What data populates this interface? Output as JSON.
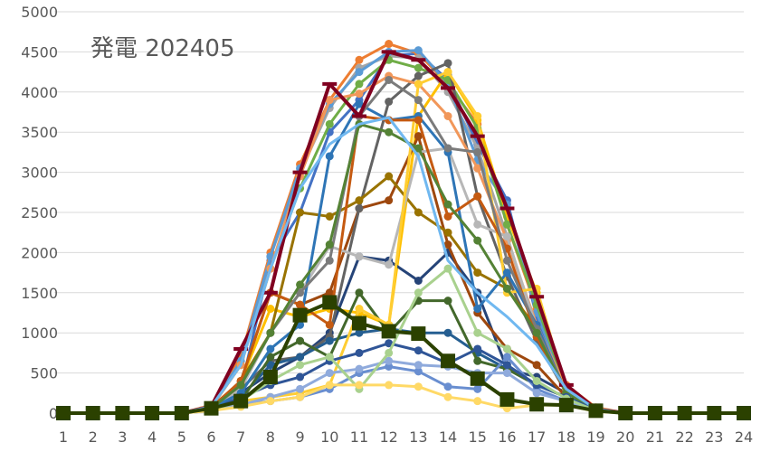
{
  "chart_data": {
    "type": "line",
    "title": "発電 202405",
    "xlabel": "",
    "ylabel": "",
    "x": [
      1,
      2,
      3,
      4,
      5,
      6,
      7,
      8,
      9,
      10,
      11,
      12,
      13,
      14,
      15,
      16,
      17,
      18,
      19,
      20,
      21,
      22,
      23,
      24
    ],
    "ylim": [
      0,
      5000
    ],
    "yticks": [
      0,
      500,
      1000,
      1500,
      2000,
      2500,
      3000,
      3500,
      4000,
      4500,
      5000
    ],
    "grid": "horizontal",
    "legend": "none",
    "series": [
      {
        "color": "#4472C4",
        "marker": "circle",
        "values": [
          0,
          0,
          0,
          0,
          0,
          60,
          300,
          1900,
          2500,
          3500,
          3900,
          4450,
          4480,
          4150,
          3350,
          2650,
          1200,
          300,
          60,
          0,
          0,
          0,
          0,
          0
        ]
      },
      {
        "color": "#ED7D31",
        "marker": "circle",
        "values": [
          0,
          0,
          0,
          0,
          0,
          100,
          700,
          2000,
          3100,
          3900,
          4400,
          4600,
          4480,
          4100,
          3600,
          2350,
          1300,
          350,
          70,
          0,
          0,
          0,
          0,
          0
        ]
      },
      {
        "color": "#A5A5A5",
        "marker": "circle",
        "values": [
          0,
          0,
          0,
          0,
          0,
          80,
          600,
          1950,
          3000,
          3800,
          4300,
          4450,
          4420,
          4000,
          3300,
          2200,
          1000,
          250,
          50,
          0,
          0,
          0,
          0,
          0
        ]
      },
      {
        "color": "#FFC000",
        "marker": "circle",
        "values": [
          0,
          0,
          0,
          0,
          0,
          50,
          400,
          1300,
          1200,
          1300,
          1250,
          1100,
          3700,
          4250,
          3650,
          2450,
          1500,
          300,
          60,
          0,
          0,
          0,
          0,
          0
        ]
      },
      {
        "color": "#5B9BD5",
        "marker": "circle",
        "values": [
          0,
          0,
          0,
          0,
          0,
          90,
          650,
          1950,
          3050,
          3850,
          4250,
          4500,
          4520,
          4100,
          3150,
          2600,
          1250,
          280,
          50,
          0,
          0,
          0,
          0,
          0
        ]
      },
      {
        "color": "#70AD47",
        "marker": "circle",
        "values": [
          0,
          0,
          0,
          0,
          0,
          70,
          600,
          1800,
          2800,
          3600,
          4100,
          4400,
          4300,
          4150,
          3550,
          2350,
          1350,
          300,
          60,
          0,
          0,
          0,
          0,
          0
        ]
      },
      {
        "color": "#264478",
        "marker": "circle",
        "values": [
          0,
          0,
          0,
          0,
          0,
          60,
          250,
          500,
          700,
          1000,
          1950,
          1900,
          1650,
          2000,
          1500,
          550,
          450,
          250,
          50,
          0,
          0,
          0,
          0,
          0
        ]
      },
      {
        "color": "#9E480E",
        "marker": "circle",
        "values": [
          0,
          0,
          0,
          0,
          0,
          50,
          400,
          1500,
          1350,
          1500,
          2550,
          2650,
          3450,
          2100,
          1250,
          800,
          600,
          200,
          40,
          0,
          0,
          0,
          0,
          0
        ]
      },
      {
        "color": "#636363",
        "marker": "circle",
        "values": [
          0,
          0,
          0,
          0,
          0,
          60,
          300,
          650,
          700,
          950,
          2550,
          3880,
          4200,
          4360,
          2700,
          1700,
          900,
          250,
          50,
          0,
          0,
          0,
          0,
          0
        ]
      },
      {
        "color": "#997300",
        "marker": "circle",
        "values": [
          0,
          0,
          0,
          0,
          0,
          60,
          400,
          1000,
          2500,
          2450,
          2650,
          2950,
          2500,
          2250,
          1750,
          1550,
          1050,
          250,
          50,
          0,
          0,
          0,
          0,
          0
        ]
      },
      {
        "color": "#255E91",
        "marker": "circle",
        "values": [
          0,
          0,
          0,
          0,
          0,
          40,
          200,
          600,
          700,
          900,
          1000,
          1050,
          1000,
          1000,
          750,
          550,
          350,
          200,
          40,
          0,
          0,
          0,
          0,
          0
        ]
      },
      {
        "color": "#43682B",
        "marker": "circle",
        "values": [
          0,
          0,
          0,
          0,
          0,
          40,
          150,
          700,
          900,
          700,
          1500,
          1000,
          1400,
          1400,
          650,
          550,
          350,
          200,
          40,
          0,
          0,
          0,
          0,
          0
        ]
      },
      {
        "color": "#698ED0",
        "marker": "circle",
        "values": [
          0,
          0,
          0,
          0,
          0,
          30,
          100,
          150,
          200,
          300,
          500,
          580,
          520,
          330,
          300,
          700,
          300,
          150,
          30,
          0,
          0,
          0,
          0,
          0
        ]
      },
      {
        "color": "#F1975A",
        "marker": "circle",
        "values": [
          0,
          0,
          0,
          0,
          0,
          70,
          600,
          1800,
          2950,
          3900,
          3980,
          4200,
          4100,
          3700,
          3050,
          2150,
          1100,
          300,
          50,
          0,
          0,
          0,
          0,
          0
        ]
      },
      {
        "color": "#B7B7B7",
        "marker": "circle",
        "values": [
          0,
          0,
          0,
          0,
          0,
          60,
          300,
          1000,
          1500,
          2080,
          1950,
          1850,
          3250,
          3300,
          2350,
          2200,
          1050,
          250,
          50,
          0,
          0,
          0,
          0,
          0
        ]
      },
      {
        "color": "#FFCD33",
        "marker": "circle",
        "values": [
          0,
          0,
          0,
          0,
          0,
          40,
          150,
          200,
          250,
          350,
          1300,
          1100,
          4100,
          4250,
          3700,
          1500,
          1550,
          300,
          60,
          0,
          0,
          0,
          0,
          0
        ]
      },
      {
        "color": "#2E75B6",
        "marker": "circle",
        "values": [
          0,
          0,
          0,
          0,
          0,
          60,
          250,
          800,
          1100,
          3200,
          3850,
          3650,
          3700,
          3250,
          1300,
          1750,
          1100,
          250,
          50,
          0,
          0,
          0,
          0,
          0
        ]
      },
      {
        "color": "#C55A11",
        "marker": "circle",
        "values": [
          0,
          0,
          0,
          0,
          0,
          70,
          400,
          1500,
          1350,
          1100,
          3700,
          3650,
          3650,
          2450,
          2700,
          2050,
          950,
          250,
          50,
          0,
          0,
          0,
          0,
          0
        ]
      },
      {
        "color": "#7B7B7B",
        "marker": "circle",
        "values": [
          0,
          0,
          0,
          0,
          0,
          60,
          350,
          1000,
          1500,
          1900,
          3700,
          4150,
          3900,
          3300,
          3250,
          1900,
          1050,
          250,
          50,
          0,
          0,
          0,
          0,
          0
        ]
      },
      {
        "color": "#548235",
        "marker": "circle",
        "values": [
          0,
          0,
          0,
          0,
          0,
          60,
          350,
          1000,
          1600,
          2100,
          3600,
          3500,
          3300,
          2600,
          2150,
          1550,
          1000,
          250,
          50,
          0,
          0,
          0,
          0,
          0
        ]
      },
      {
        "color": "#2F5597",
        "marker": "circle",
        "values": [
          0,
          0,
          0,
          0,
          0,
          40,
          200,
          350,
          450,
          650,
          750,
          870,
          780,
          620,
          800,
          600,
          350,
          200,
          40,
          0,
          0,
          0,
          0,
          0
        ]
      },
      {
        "color": "#8FAADC",
        "marker": "circle",
        "values": [
          0,
          0,
          0,
          0,
          0,
          30,
          100,
          200,
          300,
          500,
          550,
          650,
          600,
          580,
          500,
          500,
          250,
          150,
          30,
          0,
          0,
          0,
          0,
          0
        ]
      },
      {
        "color": "#A9D18E",
        "marker": "circle",
        "values": [
          0,
          0,
          0,
          0,
          0,
          40,
          150,
          400,
          600,
          700,
          300,
          750,
          1500,
          1800,
          1000,
          800,
          400,
          180,
          30,
          0,
          0,
          0,
          0,
          0
        ]
      },
      {
        "color": "#FFD966",
        "marker": "circle",
        "values": [
          0,
          0,
          0,
          0,
          0,
          30,
          80,
          150,
          200,
          350,
          350,
          350,
          330,
          200,
          150,
          60,
          100,
          100,
          20,
          0,
          0,
          0,
          0,
          0
        ]
      },
      {
        "color": "#800020",
        "marker": "dash",
        "values": [
          0,
          0,
          0,
          0,
          0,
          80,
          800,
          1500,
          3000,
          4100,
          3700,
          4500,
          4400,
          4050,
          3450,
          2550,
          1450,
          350,
          50,
          0,
          0,
          0,
          0,
          0
        ]
      },
      {
        "color": "#70B8F0",
        "marker": "none",
        "values": [
          0,
          0,
          0,
          0,
          0,
          80,
          600,
          1800,
          2800,
          3350,
          3600,
          3680,
          3200,
          1900,
          1500,
          1200,
          850,
          300,
          50,
          0,
          0,
          0,
          0,
          0
        ]
      },
      {
        "color": "#2B4100",
        "marker": "square",
        "values": [
          0,
          0,
          0,
          0,
          0,
          60,
          150,
          450,
          1220,
          1380,
          1120,
          1020,
          990,
          650,
          430,
          170,
          110,
          100,
          30,
          0,
          0,
          0,
          0,
          0
        ]
      }
    ]
  }
}
